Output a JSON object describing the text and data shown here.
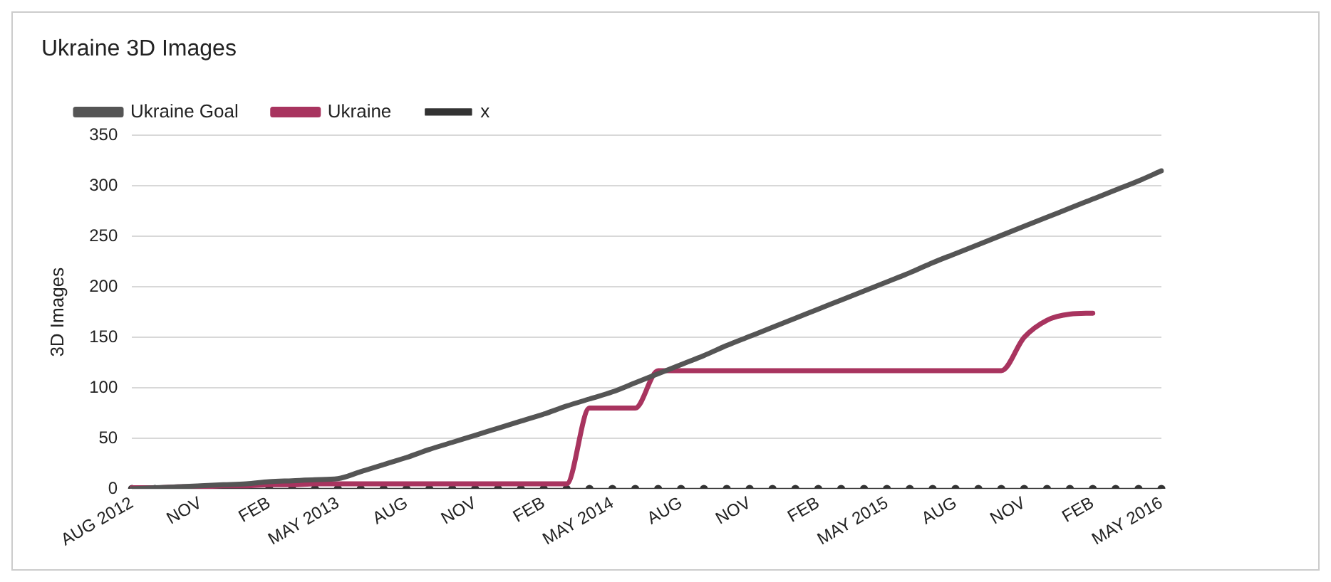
{
  "chart_data": {
    "type": "line",
    "title": "Ukraine 3D Images",
    "ylabel": "3D Images",
    "categories": [
      "AUG 2012",
      null,
      null,
      "NOV",
      null,
      null,
      "FEB",
      null,
      null,
      "MAY 2013",
      null,
      null,
      "AUG",
      null,
      null,
      "NOV",
      null,
      null,
      "FEB",
      null,
      null,
      "MAY 2014",
      null,
      null,
      "AUG",
      null,
      null,
      "NOV",
      null,
      null,
      "FEB",
      null,
      null,
      "MAY 2015",
      null,
      null,
      "AUG",
      null,
      null,
      "NOV",
      null,
      null,
      "FEB",
      null,
      null,
      "MAY 2016"
    ],
    "series": [
      {
        "name": "Ukraine Goal",
        "color": "#555555",
        "marker": "none",
        "values": [
          0,
          1,
          2,
          3,
          4,
          5,
          7,
          8,
          9,
          10,
          17,
          24,
          31,
          39,
          46,
          53,
          60,
          67,
          74,
          82,
          89,
          96,
          105,
          114,
          123,
          132,
          142,
          151,
          160,
          169,
          178,
          187,
          196,
          205,
          214,
          224,
          233,
          242,
          251,
          260,
          269,
          278,
          287,
          296,
          305,
          315
        ]
      },
      {
        "name": "Ukraine",
        "color": "#a8345f",
        "marker": "none",
        "values": [
          1,
          1,
          2,
          2,
          3,
          3,
          4,
          4,
          5,
          5,
          5,
          5,
          5,
          5,
          5,
          5,
          5,
          5,
          5,
          5,
          80,
          80,
          80,
          117,
          117,
          117,
          117,
          117,
          117,
          117,
          117,
          117,
          117,
          117,
          117,
          117,
          117,
          117,
          117,
          150,
          167,
          173,
          174,
          null,
          null,
          null
        ]
      },
      {
        "name": "x",
        "color": "#333333",
        "marker": "circle",
        "values": [
          0,
          0,
          0,
          0,
          0,
          0,
          0,
          0,
          0,
          0,
          0,
          0,
          0,
          0,
          0,
          0,
          0,
          0,
          0,
          0,
          0,
          0,
          0,
          0,
          0,
          0,
          0,
          0,
          0,
          0,
          0,
          0,
          0,
          0,
          0,
          0,
          0,
          0,
          0,
          0,
          0,
          0,
          0,
          0,
          0,
          0
        ]
      }
    ],
    "ylim": [
      0,
      350
    ],
    "yticks": [
      0,
      50,
      100,
      150,
      200,
      250,
      300,
      350
    ],
    "grid": "y",
    "legend": "top left"
  }
}
